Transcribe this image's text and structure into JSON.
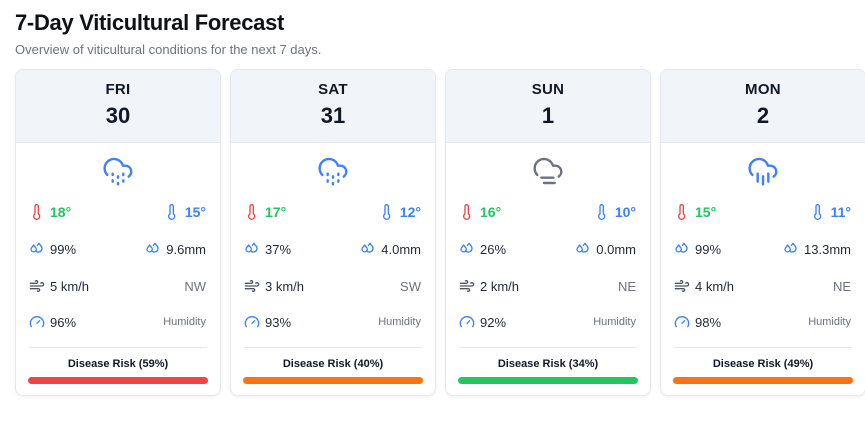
{
  "page": {
    "title": "7-Day Viticultural Forecast",
    "subtitle": "Overview of viticultural conditions for the next 7 days."
  },
  "labels": {
    "humidity": "Humidity"
  },
  "colors": {
    "high_temp": "#22c55e",
    "low_temp": "#3b82f6",
    "thermo_hot": "#ef4444",
    "thermo_cold": "#3b82f6"
  },
  "days": [
    {
      "dow": "FRI",
      "date": "30",
      "icon": "cloud-drizzle-icon",
      "high": "18°",
      "low": "15°",
      "rain_prob": "99%",
      "rain_amount": "9.6mm",
      "wind": "5 km/h",
      "wind_dir": "NW",
      "humidity": "96%",
      "risk_label": "Disease Risk (59%)",
      "risk_value": 59,
      "risk_color": "#ef4444"
    },
    {
      "dow": "SAT",
      "date": "31",
      "icon": "cloud-drizzle-icon",
      "high": "17°",
      "low": "12°",
      "rain_prob": "37%",
      "rain_amount": "4.0mm",
      "wind": "3 km/h",
      "wind_dir": "SW",
      "humidity": "93%",
      "risk_label": "Disease Risk (40%)",
      "risk_value": 40,
      "risk_color": "#f97316"
    },
    {
      "dow": "SUN",
      "date": "1",
      "icon": "cloud-fog-icon",
      "high": "16°",
      "low": "10°",
      "rain_prob": "26%",
      "rain_amount": "0.0mm",
      "wind": "2 km/h",
      "wind_dir": "NE",
      "humidity": "92%",
      "risk_label": "Disease Risk (34%)",
      "risk_value": 34,
      "risk_color": "#22c55e"
    },
    {
      "dow": "MON",
      "date": "2",
      "icon": "cloud-rain-heavy-icon",
      "high": "15°",
      "low": "11°",
      "rain_prob": "99%",
      "rain_amount": "13.3mm",
      "wind": "4 km/h",
      "wind_dir": "NE",
      "humidity": "98%",
      "risk_label": "Disease Risk (49%)",
      "risk_value": 49,
      "risk_color": "#f97316"
    }
  ]
}
